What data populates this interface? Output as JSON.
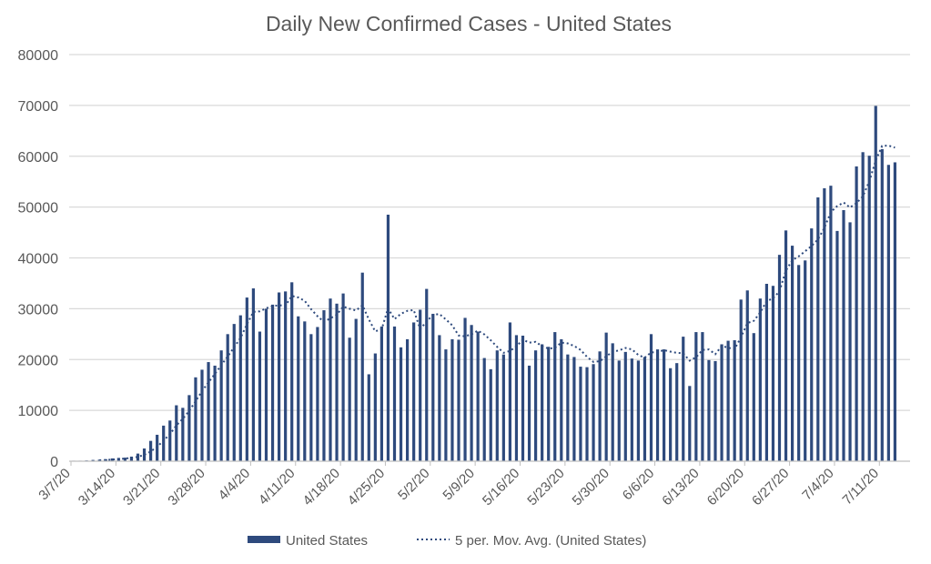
{
  "chart_data": {
    "type": "bar",
    "title": "Daily New Confirmed Cases - United States",
    "xlabel": "",
    "ylabel": "",
    "ylim": [
      0,
      80000
    ],
    "yticks": [
      0,
      10000,
      20000,
      30000,
      40000,
      50000,
      60000,
      70000,
      80000
    ],
    "grid": true,
    "legend_position": "bottom",
    "start_date": "3/7/20",
    "x_tick_labels": [
      "3/7/20",
      "3/14/20",
      "3/21/20",
      "3/28/20",
      "4/4/20",
      "4/11/20",
      "4/18/20",
      "4/25/20",
      "5/2/20",
      "5/9/20",
      "5/16/20",
      "5/23/20",
      "5/30/20",
      "6/6/20",
      "6/13/20",
      "6/20/20",
      "6/27/20",
      "7/4/20",
      "7/11/20"
    ],
    "series": [
      {
        "name": "United States",
        "kind": "bar",
        "color": "#2e4a7d",
        "values": [
          100,
          100,
          150,
          250,
          300,
          400,
          550,
          650,
          700,
          900,
          1500,
          2500,
          4000,
          5200,
          7000,
          8000,
          11000,
          10500,
          13000,
          16500,
          18000,
          19500,
          18800,
          21800,
          25000,
          27000,
          28700,
          32200,
          34000,
          25500,
          30000,
          30800,
          33200,
          33400,
          35200,
          28500,
          27500,
          25000,
          26400,
          29700,
          32000,
          31000,
          33000,
          24300,
          28000,
          37100,
          17100,
          21200,
          26500,
          48500,
          26500,
          22400,
          24000,
          27300,
          29800,
          33900,
          29000,
          24800,
          22000,
          24000,
          23900,
          28200,
          26800,
          25500,
          20300,
          18100,
          21800,
          21000,
          27300,
          24800,
          24700,
          18800,
          21800,
          23000,
          22500,
          25400,
          24000,
          21000,
          20500,
          18600,
          18500,
          19100,
          21600,
          25300,
          23200,
          19800,
          21500,
          20200,
          19800,
          20500,
          25000,
          22000,
          22000,
          18300,
          19300,
          24500,
          14800,
          25400,
          25400,
          19900,
          19700,
          23000,
          23700,
          23800,
          31800,
          33600,
          25200,
          32000,
          34900,
          34500,
          40600,
          45400,
          42400,
          38600,
          39500,
          45800,
          51900,
          53700,
          54200,
          45300,
          49400,
          47000,
          58000,
          60800,
          60100,
          69900,
          61400,
          58300,
          58800
        ]
      },
      {
        "name": "5 per. Mov. Avg. (United States)",
        "kind": "moving-average",
        "period": 5,
        "color": "#2e4a7d"
      }
    ]
  }
}
